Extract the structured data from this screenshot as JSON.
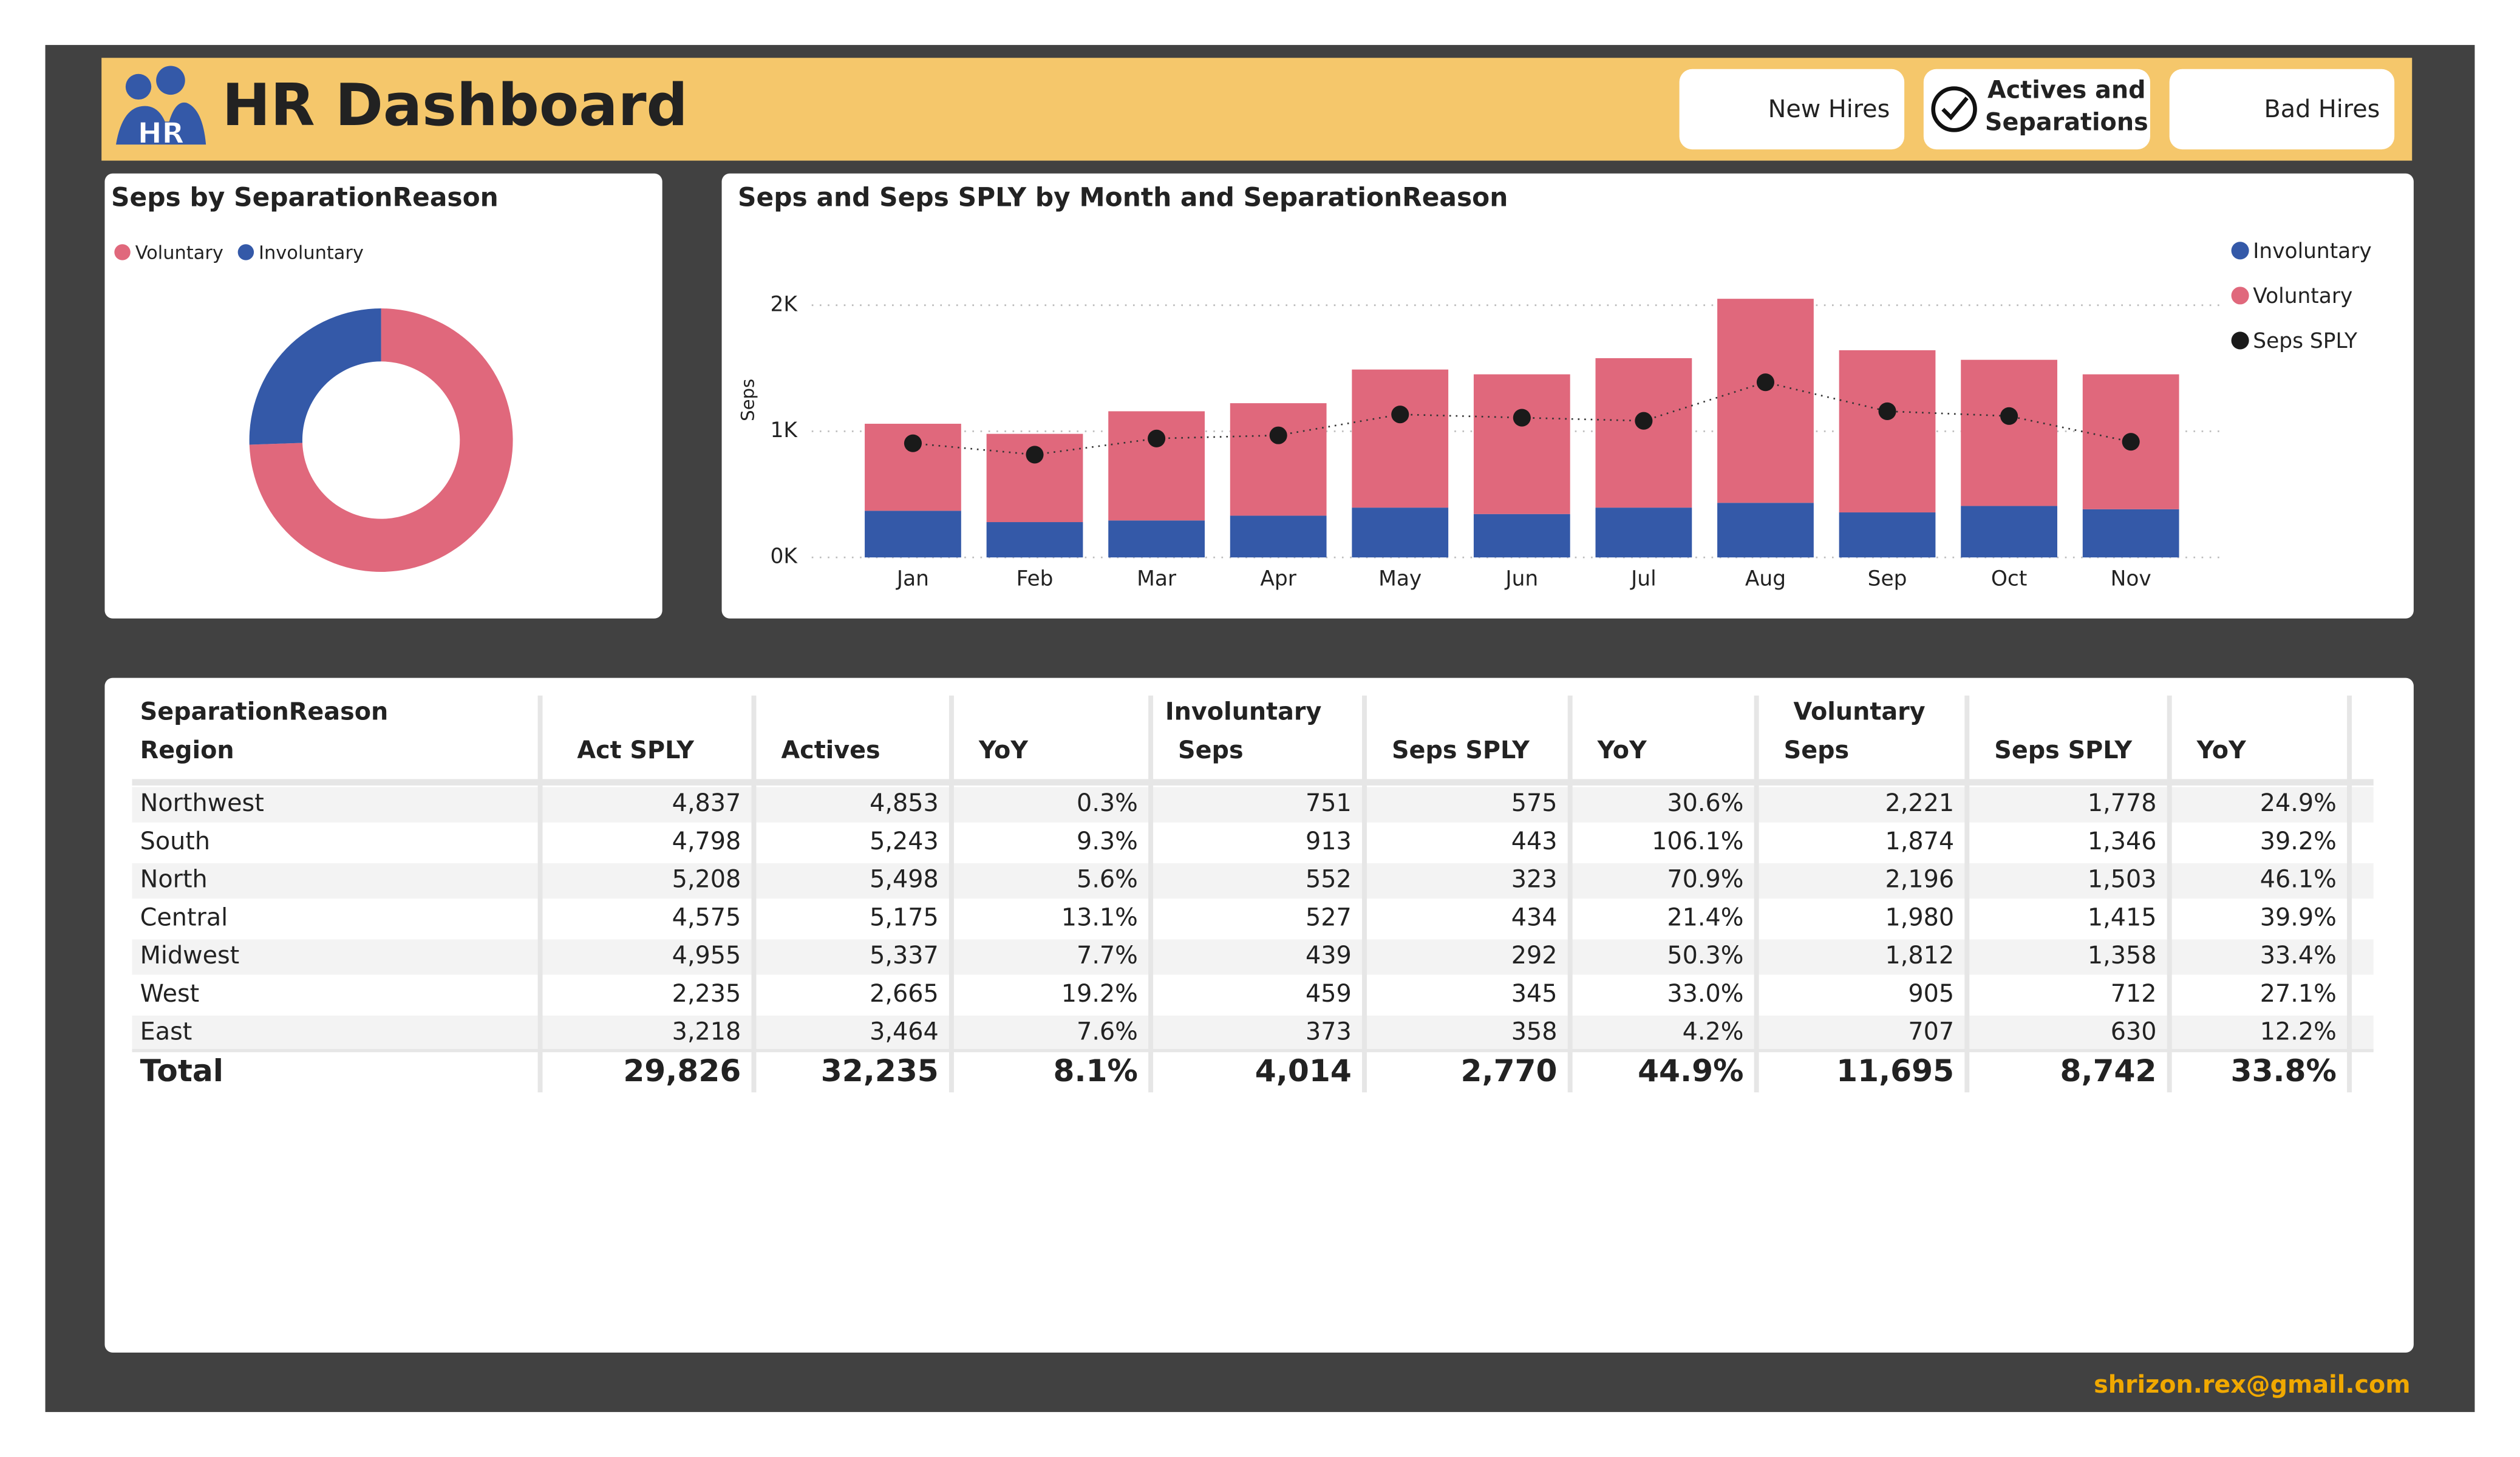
{
  "header": {
    "logo_text": "HR",
    "title": "HR Dashboard",
    "buttons": [
      "New Hires",
      "Actives and Separations",
      "Bad Hires"
    ]
  },
  "chart_data": [
    {
      "type": "donut",
      "title": "Seps by SeparationReason",
      "categories": [
        "Voluntary",
        "Involuntary"
      ],
      "values": [
        11695,
        4014
      ],
      "colors": [
        "#e0687c",
        "#3459a8"
      ],
      "legend": "top-left"
    },
    {
      "type": "stacked-bar",
      "title": "Seps and Seps SPLY by Month and SeparationReason",
      "y_label": "Seps",
      "categories": [
        "Jan",
        "Feb",
        "Mar",
        "Apr",
        "May",
        "Jun",
        "Jul",
        "Aug",
        "Sep",
        "Oct",
        "Nov"
      ],
      "series": [
        {
          "name": "Involuntary",
          "color": "#3459a8",
          "values": [
            370,
            280,
            293,
            331,
            395,
            344,
            395,
            433,
            357,
            408,
            382
          ]
        },
        {
          "name": "Voluntary",
          "color": "#e0687c",
          "values": [
            690,
            700,
            866,
            892,
            1095,
            1108,
            1185,
            1618,
            1286,
            1159,
            1070
          ]
        },
        {
          "name": "Seps SPLY",
          "color": "#1a1a1a",
          "kind": "dots",
          "values": [
            905,
            815,
            943,
            968,
            1134,
            1108,
            1083,
            1389,
            1159,
            1121,
            917
          ]
        }
      ],
      "ylim": [
        0,
        2100
      ],
      "yticks": [
        {
          "value": 0,
          "label": "0K"
        },
        {
          "value": 1000,
          "label": "1K"
        },
        {
          "value": 2000,
          "label": "2K"
        }
      ],
      "grid": true,
      "legend": "top-right"
    }
  ],
  "table": {
    "corner_top": "SeparationReason",
    "corner_bottom": "Region",
    "groups": [
      "Involuntary",
      "Voluntary"
    ],
    "columns": [
      "Act SPLY",
      "Actives",
      "YoY",
      "Seps",
      "Seps SPLY",
      "YoY",
      "Seps",
      "Seps SPLY",
      "YoY"
    ],
    "rows": [
      [
        "Northwest",
        "4,837",
        "4,853",
        "0.3%",
        "751",
        "575",
        "30.6%",
        "2,221",
        "1,778",
        "24.9%"
      ],
      [
        "South",
        "4,798",
        "5,243",
        "9.3%",
        "913",
        "443",
        "106.1%",
        "1,874",
        "1,346",
        "39.2%"
      ],
      [
        "North",
        "5,208",
        "5,498",
        "5.6%",
        "552",
        "323",
        "70.9%",
        "2,196",
        "1,503",
        "46.1%"
      ],
      [
        "Central",
        "4,575",
        "5,175",
        "13.1%",
        "527",
        "434",
        "21.4%",
        "1,980",
        "1,415",
        "39.9%"
      ],
      [
        "Midwest",
        "4,955",
        "5,337",
        "7.7%",
        "439",
        "292",
        "50.3%",
        "1,812",
        "1,358",
        "33.4%"
      ],
      [
        "West",
        "2,235",
        "2,665",
        "19.2%",
        "459",
        "345",
        "33.0%",
        "905",
        "712",
        "27.1%"
      ],
      [
        "East",
        "3,218",
        "3,464",
        "7.6%",
        "373",
        "358",
        "4.2%",
        "707",
        "630",
        "12.2%"
      ]
    ],
    "total": [
      "Total",
      "29,826",
      "32,235",
      "8.1%",
      "4,014",
      "2,770",
      "44.9%",
      "11,695",
      "8,742",
      "33.8%"
    ]
  },
  "footer": {
    "email": "shrizon.rex@gmail.com"
  }
}
